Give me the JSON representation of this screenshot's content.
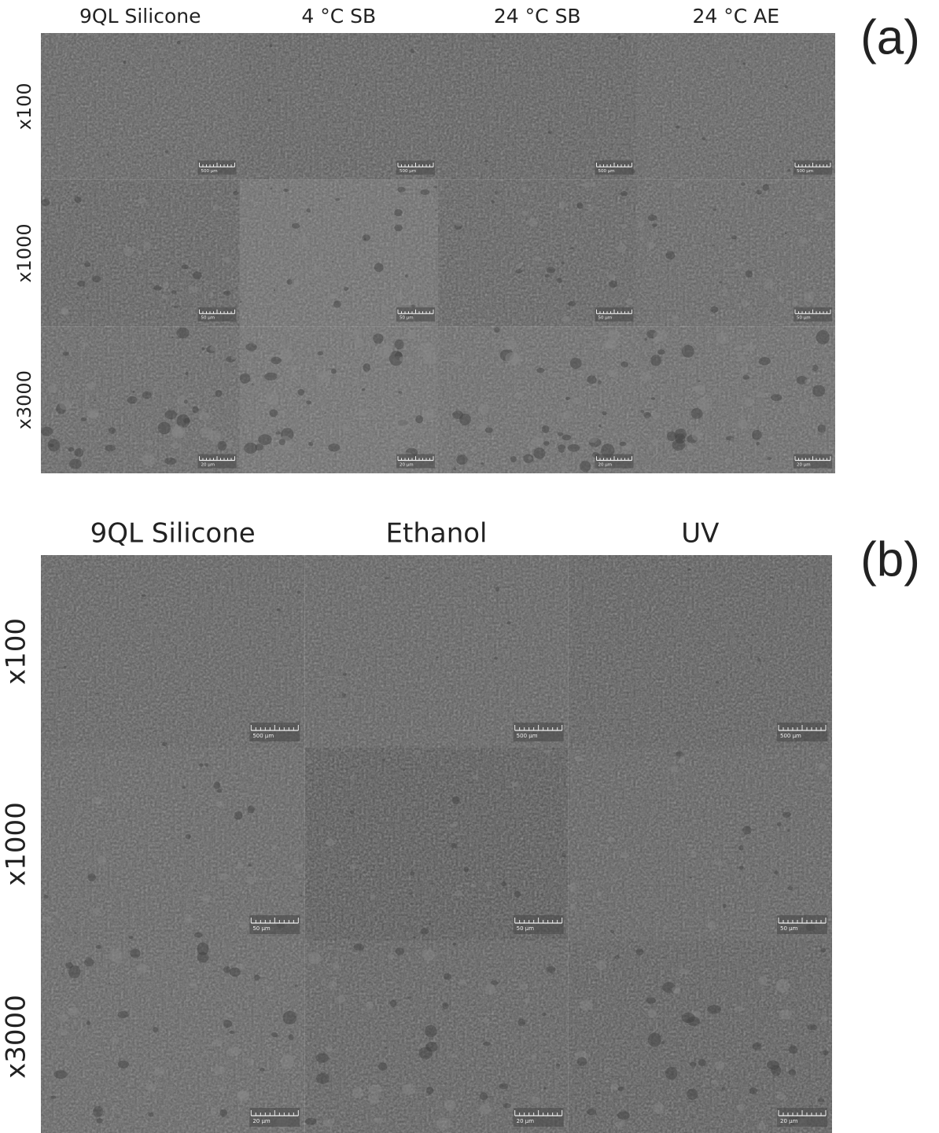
{
  "panels": [
    {
      "label": "(a)",
      "columns": [
        "9QL Silicone",
        "4 °C SB",
        "24 °C SB",
        "24 °C AE"
      ],
      "rows": [
        {
          "label": "x100",
          "scale": "500 µm"
        },
        {
          "label": "x1000",
          "scale": "50 µm"
        },
        {
          "label": "x3000",
          "scale": "20 µm"
        }
      ]
    },
    {
      "label": "(b)",
      "columns": [
        "9QL Silicone",
        "Ethanol",
        "UV"
      ],
      "rows": [
        {
          "label": "x100",
          "scale": "500 µm"
        },
        {
          "label": "x1000",
          "scale": "50 µm"
        },
        {
          "label": "x3000",
          "scale": "20 µm"
        }
      ]
    }
  ]
}
